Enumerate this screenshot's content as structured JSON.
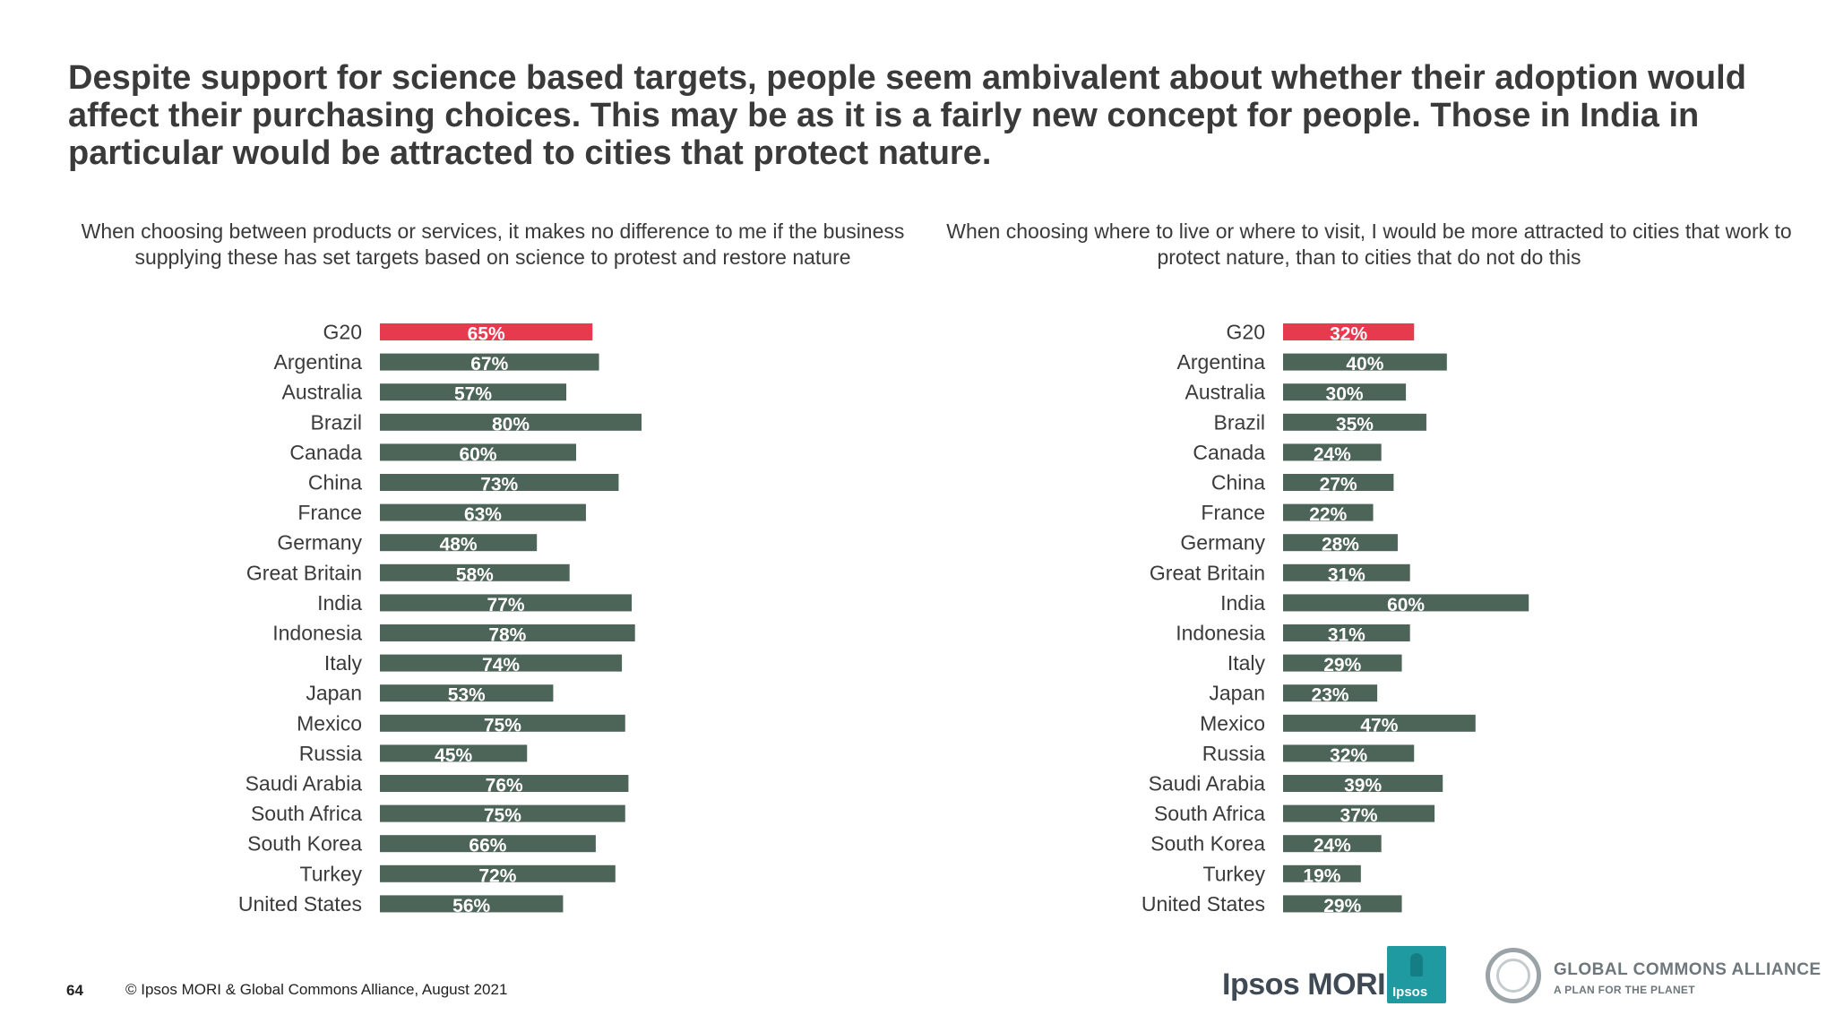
{
  "headline": "Despite support for science based targets, people seem ambivalent about whether their adoption would affect their purchasing choices. This may be as it is a fairly new concept for people. Those in India in particular would be attracted to cities that protect nature.",
  "colors": {
    "highlight": "#e83a4f",
    "bar": "#4d6459",
    "text": "#3a3a3a"
  },
  "chart_data": [
    {
      "type": "bar",
      "orientation": "horizontal",
      "title": "When choosing between products or services, it makes no difference to me if the business supplying these has set targets based on science to protest and restore nature",
      "categories": [
        "G20",
        "Argentina",
        "Australia",
        "Brazil",
        "Canada",
        "China",
        "France",
        "Germany",
        "Great Britain",
        "India",
        "Indonesia",
        "Italy",
        "Japan",
        "Mexico",
        "Russia",
        "Saudi Arabia",
        "South Africa",
        "South Korea",
        "Turkey",
        "United States"
      ],
      "values": [
        65,
        67,
        57,
        80,
        60,
        73,
        63,
        48,
        58,
        77,
        78,
        74,
        53,
        75,
        45,
        76,
        75,
        66,
        72,
        56
      ],
      "value_labels": [
        "65%",
        "67%",
        "57%",
        "80%",
        "60%",
        "73%",
        "63%",
        "48%",
        "58%",
        "77%",
        "78%",
        "74%",
        "53%",
        "75%",
        "45%",
        "76%",
        "75%",
        "66%",
        "72%",
        "56%"
      ],
      "highlight": "G20",
      "xlim": [
        0,
        100
      ]
    },
    {
      "type": "bar",
      "orientation": "horizontal",
      "title": "When choosing where to live or where to visit, I would be more attracted to cities that work to protect nature, than to cities that do not do this",
      "categories": [
        "G20",
        "Argentina",
        "Australia",
        "Brazil",
        "Canada",
        "China",
        "France",
        "Germany",
        "Great Britain",
        "India",
        "Indonesia",
        "Italy",
        "Japan",
        "Mexico",
        "Russia",
        "Saudi Arabia",
        "South Africa",
        "South Korea",
        "Turkey",
        "United States"
      ],
      "values": [
        32,
        40,
        30,
        35,
        24,
        27,
        22,
        28,
        31,
        60,
        31,
        29,
        23,
        47,
        32,
        39,
        37,
        24,
        19,
        29
      ],
      "value_labels": [
        "32%",
        "40%",
        "30%",
        "35%",
        "24%",
        "27%",
        "22%",
        "28%",
        "31%",
        "60%",
        "31%",
        "29%",
        "23%",
        "47%",
        "32%",
        "39%",
        "37%",
        "24%",
        "19%",
        "29%"
      ],
      "highlight": "G20",
      "xlim": [
        0,
        100
      ]
    }
  ],
  "footer": {
    "page_number": "64",
    "copyright": "© Ipsos MORI & Global Commons Alliance, August 2021"
  },
  "logos": {
    "ipsos_mori": "Ipsos MORI",
    "ipsos_box": "Ipsos",
    "gca_title": "GLOBAL COMMONS ALLIANCE",
    "gca_tagline": "A PLAN FOR THE PLANET"
  }
}
